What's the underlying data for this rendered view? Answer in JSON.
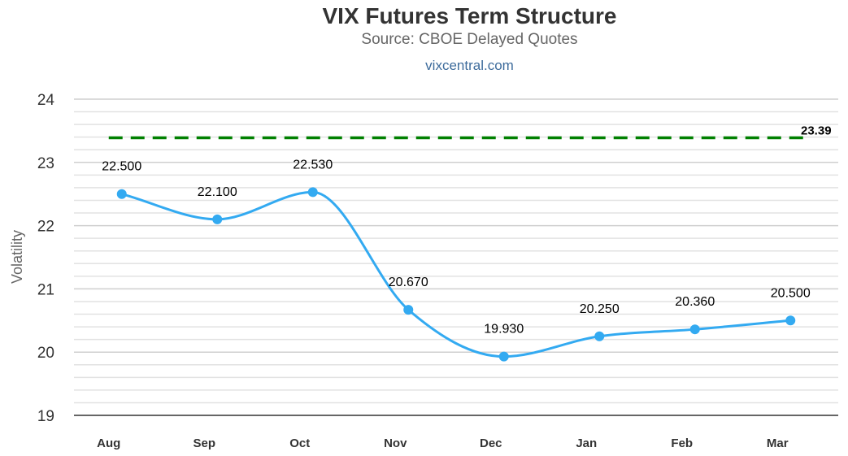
{
  "header": {
    "title": "VIX Futures Term Structure",
    "subtitle": "Source: CBOE Delayed Quotes",
    "link": "vixcentral.com"
  },
  "chart_data": {
    "type": "line",
    "title": "VIX Futures Term Structure",
    "subtitle": "Source: CBOE Delayed Quotes",
    "ylabel": "Volatility",
    "xlabel": "",
    "categories": [
      "Aug",
      "Sep",
      "Oct",
      "Nov",
      "Dec",
      "Jan",
      "Feb",
      "Mar"
    ],
    "series": [
      {
        "values": [
          22.5,
          22.1,
          22.53,
          20.67,
          19.93,
          20.25,
          20.36,
          20.5
        ],
        "labels": [
          "22.500",
          "22.100",
          "22.530",
          "20.670",
          "19.930",
          "20.250",
          "20.360",
          "20.500"
        ],
        "color": "#33aaf1"
      }
    ],
    "reference_line": {
      "value": 23.39,
      "label": "23.39",
      "color": "#008000",
      "style": "dashed"
    },
    "ylim": [
      19,
      24
    ],
    "yticks": [
      "19",
      "20",
      "21",
      "22",
      "23",
      "24"
    ],
    "minor_grid_step": 0.2,
    "grid": true,
    "legend": "none"
  }
}
